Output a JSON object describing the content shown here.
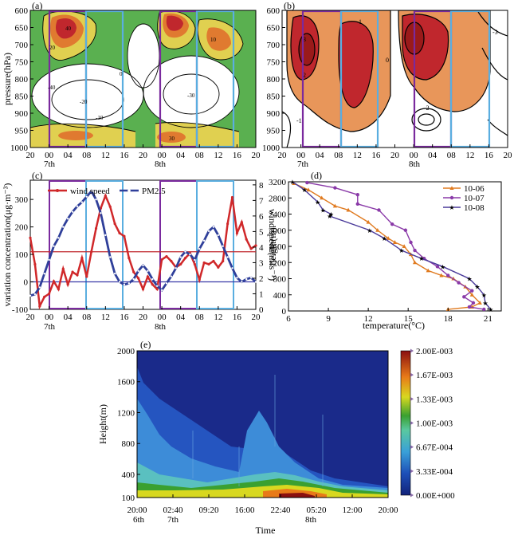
{
  "colors": {
    "purple_box": "#7a2a9e",
    "blue_box": "#5aaee0",
    "contour_red": "#c0272d",
    "contour_orange": "#e8965a",
    "contour_yellow": "#d9c23a",
    "contour_green": "#2e9a45",
    "wind_line": "#d0282a",
    "pm_line": "#2f3f9a",
    "series_1006": "#e07a1f",
    "series_1007": "#8a3aa8",
    "series_1008": "#4a3a9a"
  },
  "chart_data": [
    {
      "panel": "(a)",
      "type": "heatmap",
      "ylabel": "pressure(hPa)",
      "yticks": [
        "600",
        "650",
        "700",
        "750",
        "800",
        "850",
        "900",
        "950",
        "1000"
      ],
      "xticks": [
        "20",
        "00",
        "04",
        "08",
        "12",
        "16",
        "20",
        "00",
        "04",
        "08",
        "12",
        "16",
        "20"
      ],
      "day_labels": [
        "7th",
        "8th"
      ],
      "contour_labels": [
        "-40",
        "-30",
        "-20",
        "-10",
        "0",
        "10",
        "20",
        "30",
        "40"
      ],
      "ylim": [
        1000,
        600
      ]
    },
    {
      "panel": "(b)",
      "type": "heatmap",
      "yticks": [
        "600",
        "650",
        "700",
        "750",
        "800",
        "850",
        "900",
        "950",
        "1000"
      ],
      "xticks": [
        "20",
        "00",
        "04",
        "08",
        "12",
        "16",
        "20",
        "00",
        "04",
        "08",
        "12",
        "16",
        "20"
      ],
      "day_labels": [
        "7th",
        "8th"
      ],
      "contour_labels": [
        "-3",
        "-2",
        "-1",
        "0",
        "1",
        "2",
        "3"
      ],
      "ylim": [
        1000,
        600
      ]
    },
    {
      "panel": "(c)",
      "type": "line",
      "ylabel": "variation concentration(μg·m⁻³)",
      "y2label": "wind speed(m·s⁻¹)",
      "xticks": [
        "20",
        "00",
        "04",
        "08",
        "12",
        "16",
        "20",
        "00",
        "04",
        "08",
        "12",
        "16",
        "20"
      ],
      "day_labels": [
        "7th",
        "8th"
      ],
      "yticks": [
        "-100",
        "0",
        "100",
        "200",
        "300"
      ],
      "y2ticks": [
        "0",
        "1",
        "2",
        "3",
        "4",
        "5",
        "6",
        "7",
        "8"
      ],
      "ylim": [
        -100,
        370
      ],
      "y2lim": [
        0,
        8.3
      ],
      "hline_wind": 3.7,
      "hline_pm": 0,
      "x": [
        0,
        1,
        2,
        3,
        4,
        5,
        6,
        7,
        8,
        9,
        10,
        11,
        12,
        13,
        14,
        15,
        16,
        17,
        18,
        19,
        20,
        21,
        22,
        23,
        24,
        25,
        26,
        27,
        28,
        29,
        30,
        31,
        32,
        33,
        34,
        35,
        36,
        37,
        38,
        39,
        40,
        41,
        42,
        43,
        44,
        45,
        46,
        47,
        48
      ],
      "series": [
        {
          "name": "wind speed",
          "axis": "right",
          "values": [
            4.6,
            2.9,
            0.2,
            0.8,
            1.0,
            1.8,
            1.3,
            2.6,
            1.6,
            2.4,
            2.2,
            3.3,
            2.1,
            3.7,
            5.2,
            6.5,
            7.3,
            6.6,
            5.5,
            4.9,
            4.7,
            3.3,
            2.4,
            2.0,
            1.3,
            2.1,
            1.6,
            1.3,
            3.2,
            3.4,
            3.1,
            2.7,
            2.9,
            3.3,
            3.6,
            2.9,
            1.9,
            3.0,
            2.9,
            3.1,
            2.7,
            3.1,
            5.5,
            7.2,
            4.9,
            5.6,
            4.5,
            3.9,
            4.1
          ]
        },
        {
          "name": "PM2.5",
          "axis": "left",
          "values": [
            -50,
            -45,
            -20,
            30,
            80,
            130,
            160,
            200,
            230,
            255,
            275,
            290,
            310,
            330,
            300,
            250,
            170,
            90,
            30,
            0,
            -10,
            -5,
            10,
            40,
            60,
            40,
            10,
            -15,
            -30,
            -5,
            20,
            50,
            90,
            110,
            100,
            80,
            120,
            150,
            185,
            200,
            170,
            130,
            90,
            50,
            15,
            0,
            10,
            15,
            0
          ]
        }
      ]
    },
    {
      "panel": "(d)",
      "type": "line",
      "xlabel": "temperature(°C)",
      "ylabel": "height(m)",
      "xticks": [
        "6",
        "9",
        "12",
        "15",
        "18",
        "21"
      ],
      "yticks": [
        "0",
        "400",
        "800",
        "1200",
        "1600",
        "2000",
        "2400",
        "2800",
        "3200"
      ],
      "xlim": [
        6,
        22
      ],
      "ylim": [
        0,
        3200
      ],
      "series": [
        {
          "name": "10-06",
          "points": [
            [
              6.4,
              3160
            ],
            [
              7.5,
              3000
            ],
            [
              8.5,
              2800
            ],
            [
              9.5,
              2600
            ],
            [
              10.5,
              2500
            ],
            [
              12,
              2200
            ],
            [
              12.7,
              2000
            ],
            [
              13.5,
              1800
            ],
            [
              14,
              1700
            ],
            [
              14.7,
              1600
            ],
            [
              15.2,
              1400
            ],
            [
              15.5,
              1200
            ],
            [
              16.5,
              1000
            ],
            [
              17.5,
              880
            ],
            [
              18.4,
              800
            ],
            [
              19.3,
              600
            ],
            [
              19.8,
              400
            ],
            [
              20.4,
              200
            ],
            [
              19.8,
              100
            ],
            [
              18,
              40
            ]
          ]
        },
        {
          "name": "10-07",
          "points": [
            [
              7.4,
              3180
            ],
            [
              9.5,
              3050
            ],
            [
              11.2,
              2880
            ],
            [
              11.2,
              2650
            ],
            [
              12.8,
              2500
            ],
            [
              13.8,
              2150
            ],
            [
              14.8,
              2000
            ],
            [
              15.2,
              1700
            ],
            [
              15.5,
              1500
            ],
            [
              16.2,
              1300
            ],
            [
              17.2,
              1100
            ],
            [
              18,
              880
            ],
            [
              18.8,
              700
            ],
            [
              19.8,
              500
            ],
            [
              19.2,
              350
            ],
            [
              19.9,
              200
            ],
            [
              19.6,
              100
            ],
            [
              20.7,
              40
            ]
          ]
        },
        {
          "name": "10-08",
          "points": [
            [
              6.3,
              3200
            ],
            [
              7.2,
              3000
            ],
            [
              8.2,
              2700
            ],
            [
              8.6,
              2500
            ],
            [
              9.2,
              2400
            ],
            [
              9.1,
              2350
            ],
            [
              12.1,
              2000
            ],
            [
              13.2,
              1800
            ],
            [
              14.5,
              1500
            ],
            [
              16,
              1300
            ],
            [
              17.6,
              1100
            ],
            [
              19.6,
              800
            ],
            [
              20.2,
              600
            ],
            [
              20.7,
              400
            ],
            [
              20.8,
              200
            ],
            [
              21.2,
              40
            ]
          ]
        }
      ]
    },
    {
      "panel": "(e)",
      "type": "heatmap",
      "xlabel": "Time",
      "ylabel": "Height(m)",
      "xticks": [
        "20:00",
        "02:40",
        "09:20",
        "16:00",
        "22:40",
        "05:20",
        "12:00",
        "20:00"
      ],
      "date_labels": [
        "6th",
        "7th",
        "8th"
      ],
      "yticks": [
        "100",
        "400",
        "800",
        "1200",
        "1600",
        "2000"
      ],
      "colorbar_ticks": [
        "2.00E-003",
        "1.67E-003",
        "1.33E-003",
        "1.00E-003",
        "6.67E-004",
        "3.33E-004",
        "0.00E+000"
      ],
      "ylim": [
        100,
        2000
      ]
    }
  ]
}
